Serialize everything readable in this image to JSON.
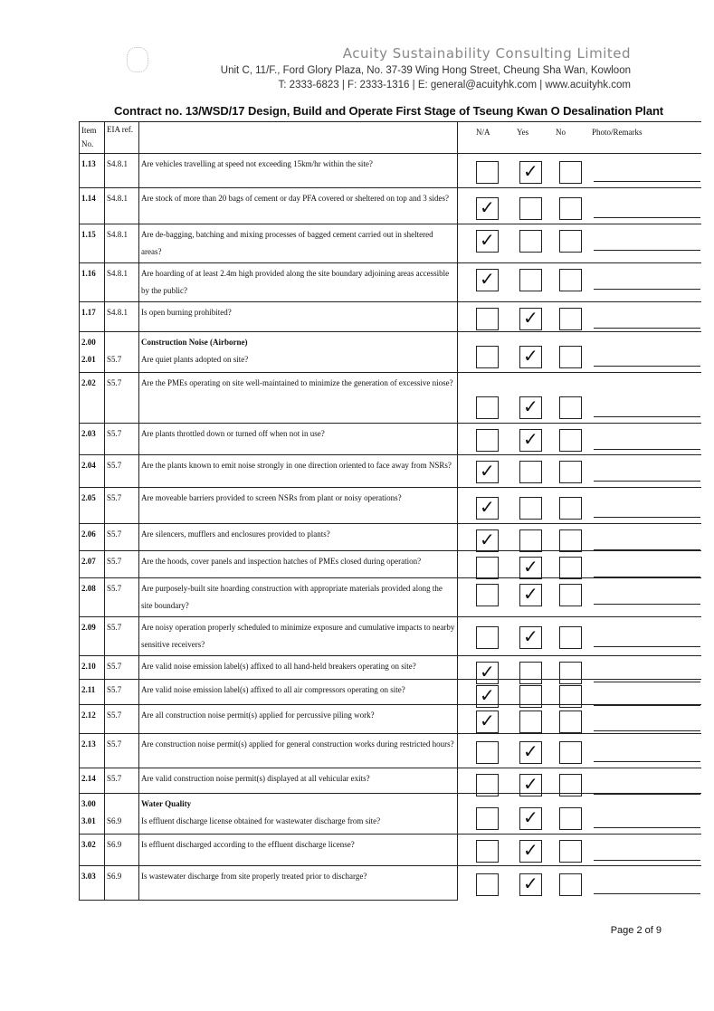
{
  "header": {
    "company": "Acuity Sustainability Consulting Limited",
    "address": "Unit C, 11/F., Ford Glory Plaza, No. 37-39 Wing Hong Street, Cheung Sha Wan, Kowloon",
    "contact": "T: 2333-6823 | F: 2333-1316 | E: general@acuityhk.com | www.acuityhk.com"
  },
  "title": "Contract no. 13/WSD/17 Design, Build and Operate First Stage of Tseung Kwan O Desalination Plant",
  "columns": {
    "item": "Item No.",
    "eia": "EIA ref.",
    "na": "N/A",
    "yes": "Yes",
    "no": "No",
    "remarks": "Photo/Remarks"
  },
  "rows": [
    {
      "item": "1.13",
      "eia": "S4.8.1",
      "text": "Are vehicles travelling at speed not exceeding 15km/hr within the site?",
      "checked": "yes"
    },
    {
      "item": "1.14",
      "eia": "S4.8.1",
      "text": "Are stock of more than 20 bags of cement or day PFA covered or sheltered on top and 3 sides?",
      "checked": "na"
    },
    {
      "item": "1.15",
      "eia": "S4.8.1",
      "text": "Are de-bagging, batching and mixing processes of bagged cement carried out in sheltered areas?",
      "checked": "na"
    },
    {
      "item": "1.16",
      "eia": "S4.8.1",
      "text": "Are hoarding of at least 2.4m high provided along the site boundary adjoining areas accessible by the public?",
      "checked": "na"
    },
    {
      "item": "1.17",
      "eia": "S4.8.1",
      "text": "Is open burning prohibited?",
      "checked": "yes"
    },
    {
      "section": "2.00",
      "section_title": "Construction Noise (Airborne)",
      "item": "2.01",
      "eia": "S5.7",
      "text": "Are quiet plants adopted on site?",
      "checked": "yes"
    },
    {
      "item": "2.02",
      "eia": "S5.7",
      "text": "Are the PMEs operating on site well-maintained to minimize the generation of excessive niose?",
      "checked": "yes"
    },
    {
      "item": "2.03",
      "eia": "S5.7",
      "text": "Are plants throttled down or turned off when not in use?",
      "checked": "yes"
    },
    {
      "item": "2.04",
      "eia": "S5.7",
      "text": "Are the plants known to emit noise strongly in one direction oriented to face away from NSRs?",
      "checked": "na"
    },
    {
      "item": "2.05",
      "eia": "S5.7",
      "text": "Are moveable barriers provided to screen NSRs from plant or noisy operations?",
      "checked": "na"
    },
    {
      "item": "2.06",
      "eia": "S5.7",
      "text": "Are silencers, mufflers and enclosures provided to plants?",
      "checked": "na"
    },
    {
      "item": "2.07",
      "eia": "S5.7",
      "text": "Are the hoods, cover panels and inspection hatches of PMEs closed during operation?",
      "checked": "yes"
    },
    {
      "item": "2.08",
      "eia": "S5.7",
      "text": "Are purposely-built site hoarding construction with appropriate materials provided along the site boundary?",
      "checked": "yes"
    },
    {
      "item": "2.09",
      "eia": "S5.7",
      "text": "Are noisy operation properly scheduled to minimize exposure and cumulative impacts to nearby sensitive receivers?",
      "checked": "yes"
    },
    {
      "item": "2.10",
      "eia": "S5.7",
      "text": "Are valid noise emission label(s) affixed to all hand-held breakers operating on site?",
      "checked": "na"
    },
    {
      "item": "2.11",
      "eia": "S5.7",
      "text": "Are valid noise emission label(s) affixed to all air compressors operating on site?",
      "checked": "na"
    },
    {
      "item": "2.12",
      "eia": "S5.7",
      "text": "Are all construction noise permit(s) applied for percussive piling work?",
      "checked": "na"
    },
    {
      "item": "2.13",
      "eia": "S5.7",
      "text": "Are construction noise permit(s) applied for general construction works during restricted hours?",
      "checked": "yes"
    },
    {
      "item": "2.14",
      "eia": "S5.7",
      "text": "Are valid construction noise permit(s) displayed at all vehicular exits?",
      "checked": "yes"
    },
    {
      "section": "3.00",
      "section_title": "Water Quality",
      "item": "3.01",
      "eia": "S6.9",
      "text": "Is effluent discharge license obtained for wastewater discharge from site?",
      "checked": "yes"
    },
    {
      "item": "3.02",
      "eia": "S6.9",
      "text": "Is effluent discharged according to the effluent discharge license?",
      "checked": "yes"
    },
    {
      "item": "3.03",
      "eia": "S6.9",
      "text": "Is wastewater discharge from site properly treated prior to discharge?",
      "checked": "yes"
    }
  ],
  "tick_glyph": "✓",
  "footer": {
    "page": "Page 2 of 9"
  }
}
